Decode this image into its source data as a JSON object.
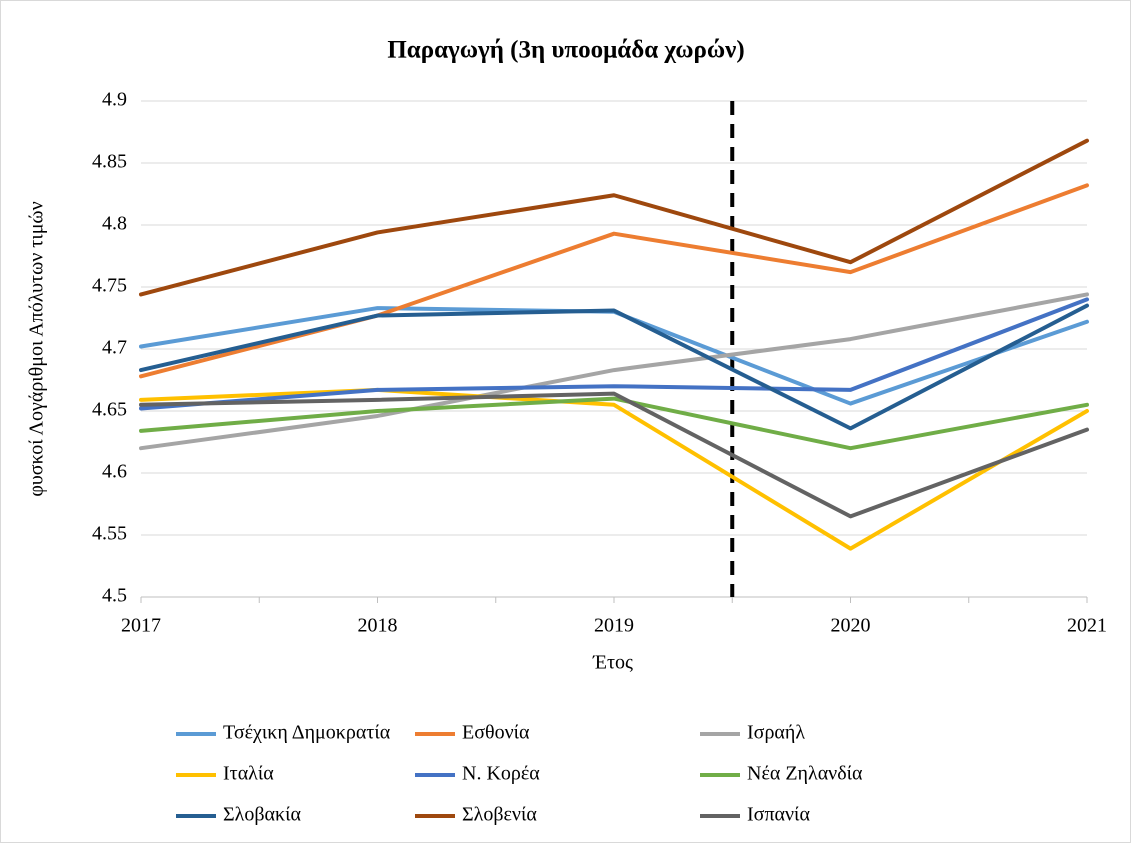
{
  "chart_data": {
    "type": "line",
    "title": "Παραγωγή (3η υποομάδα χωρών)",
    "x_label": "Έτος",
    "y_label": "φυσκοί Λογάριθμοι Απόλυτων τιμών",
    "x": [
      2017,
      2018,
      2019,
      2020,
      2021
    ],
    "xlim": [
      2017,
      2021
    ],
    "xticks": [
      2017,
      2018,
      2019,
      2020,
      2021
    ],
    "ylim": [
      4.5,
      4.9
    ],
    "yticks": [
      4.5,
      4.55,
      4.6,
      4.65,
      4.7,
      4.75,
      4.8,
      4.85,
      4.9
    ],
    "grid": true,
    "legend": "bottom",
    "divider_x": 2019.5,
    "series": [
      {
        "name": "Τσέχικη Δημοκρατία",
        "color": "#5b9bd5",
        "values": [
          4.702,
          4.733,
          4.73,
          4.656,
          4.722
        ]
      },
      {
        "name": "Εσθονία",
        "color": "#ed7d31",
        "values": [
          4.678,
          4.727,
          4.793,
          4.762,
          4.832
        ]
      },
      {
        "name": "Ισραήλ",
        "color": "#a5a5a5",
        "values": [
          4.62,
          4.646,
          4.683,
          4.708,
          4.744
        ]
      },
      {
        "name": "Ιταλία",
        "color": "#ffc000",
        "values": [
          4.659,
          4.667,
          4.655,
          4.539,
          4.65
        ]
      },
      {
        "name": "Ν. Κορέα",
        "color": "#4472c4",
        "values": [
          4.652,
          4.667,
          4.67,
          4.667,
          4.74
        ]
      },
      {
        "name": "Νέα Ζηλανδία",
        "color": "#70ad47",
        "values": [
          4.634,
          4.65,
          4.66,
          4.62,
          4.655
        ]
      },
      {
        "name": "Σλοβακία",
        "color": "#255e91",
        "values": [
          4.683,
          4.727,
          4.731,
          4.636,
          4.735
        ]
      },
      {
        "name": "Σλοβενία",
        "color": "#9e480e",
        "values": [
          4.744,
          4.794,
          4.824,
          4.77,
          4.868
        ]
      },
      {
        "name": "Ισπανία",
        "color": "#636363",
        "values": [
          4.655,
          4.659,
          4.664,
          4.565,
          4.635
        ]
      }
    ]
  }
}
